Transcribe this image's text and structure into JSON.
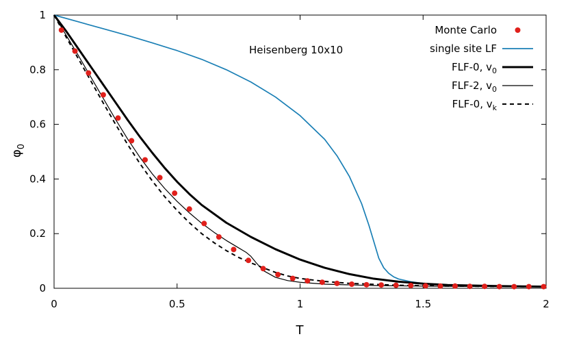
{
  "chart_data": {
    "type": "line",
    "title": "",
    "annotation": "Heisenberg 10x10",
    "xlabel": "T",
    "ylabel": "φ",
    "ylabel_sub": "0",
    "xlim": [
      0,
      2
    ],
    "ylim": [
      0,
      1
    ],
    "xticks": [
      0,
      0.5,
      1,
      1.5,
      2
    ],
    "xtick_labels": [
      "0",
      "0.5",
      "1",
      "1.5",
      "2"
    ],
    "yticks": [
      0,
      0.2,
      0.4,
      0.6,
      0.8,
      1
    ],
    "ytick_labels": [
      "0",
      "0.2",
      "0.4",
      "0.6",
      "0.8",
      "1"
    ],
    "grid": false,
    "legend_position": "top-right",
    "series": [
      {
        "name": "Monte Carlo",
        "legend_main": "Monte Carlo",
        "legend_sub": "",
        "style": "points",
        "color": "#e0201b",
        "x": [
          0.03,
          0.085,
          0.14,
          0.2,
          0.26,
          0.315,
          0.37,
          0.43,
          0.49,
          0.55,
          0.61,
          0.67,
          0.73,
          0.79,
          0.85,
          0.91,
          0.97,
          1.03,
          1.09,
          1.15,
          1.21,
          1.27,
          1.33,
          1.39,
          1.45,
          1.51,
          1.57,
          1.63,
          1.69,
          1.75,
          1.81,
          1.87,
          1.93,
          1.99
        ],
        "y": [
          0.945,
          0.868,
          0.788,
          0.708,
          0.623,
          0.54,
          0.47,
          0.405,
          0.348,
          0.29,
          0.237,
          0.188,
          0.142,
          0.102,
          0.072,
          0.05,
          0.036,
          0.027,
          0.022,
          0.018,
          0.015,
          0.013,
          0.012,
          0.011,
          0.01,
          0.009,
          0.008,
          0.008,
          0.007,
          0.007,
          0.006,
          0.006,
          0.006,
          0.006
        ]
      },
      {
        "name": "single site LF",
        "legend_main": "single site LF",
        "legend_sub": "",
        "style": "line",
        "color": "#1a7fb5",
        "width": 1.7,
        "dash": "",
        "x": [
          0,
          0.1,
          0.2,
          0.3,
          0.4,
          0.5,
          0.6,
          0.7,
          0.8,
          0.9,
          1.0,
          1.1,
          1.15,
          1.2,
          1.25,
          1.28,
          1.3,
          1.32,
          1.34,
          1.36,
          1.38,
          1.4,
          1.45,
          1.5,
          1.6,
          1.8,
          2.0
        ],
        "y": [
          1.0,
          0.975,
          0.95,
          0.925,
          0.898,
          0.87,
          0.838,
          0.8,
          0.755,
          0.7,
          0.632,
          0.545,
          0.485,
          0.41,
          0.31,
          0.23,
          0.17,
          0.11,
          0.075,
          0.055,
          0.042,
          0.034,
          0.024,
          0.018,
          0.012,
          0.008,
          0.006
        ]
      },
      {
        "name": "FLF-0, v0",
        "legend_main": "FLF-0, v",
        "legend_sub": "0",
        "style": "line",
        "color": "#000000",
        "width": 3,
        "dash": "",
        "x": [
          0,
          0.05,
          0.1,
          0.15,
          0.2,
          0.25,
          0.3,
          0.35,
          0.4,
          0.45,
          0.5,
          0.55,
          0.6,
          0.7,
          0.8,
          0.9,
          1.0,
          1.1,
          1.2,
          1.3,
          1.4,
          1.5,
          1.6,
          1.8,
          2.0
        ],
        "y": [
          1.0,
          0.94,
          0.875,
          0.81,
          0.745,
          0.68,
          0.615,
          0.553,
          0.495,
          0.44,
          0.39,
          0.345,
          0.305,
          0.24,
          0.188,
          0.143,
          0.105,
          0.075,
          0.052,
          0.035,
          0.024,
          0.017,
          0.012,
          0.008,
          0.006
        ]
      },
      {
        "name": "FLF-2, v0",
        "legend_main": "FLF-2, v",
        "legend_sub": "0",
        "style": "line",
        "color": "#000000",
        "width": 1.2,
        "dash": "",
        "x": [
          0,
          0.05,
          0.1,
          0.15,
          0.2,
          0.25,
          0.3,
          0.35,
          0.4,
          0.45,
          0.5,
          0.55,
          0.6,
          0.65,
          0.7,
          0.75,
          0.78,
          0.8,
          0.82,
          0.85,
          0.9,
          0.95,
          1.0,
          1.1,
          1.3,
          1.6,
          2.0
        ],
        "y": [
          1.0,
          0.925,
          0.85,
          0.772,
          0.695,
          0.618,
          0.545,
          0.478,
          0.418,
          0.365,
          0.318,
          0.276,
          0.238,
          0.205,
          0.175,
          0.148,
          0.132,
          0.117,
          0.095,
          0.065,
          0.04,
          0.028,
          0.022,
          0.015,
          0.01,
          0.007,
          0.005
        ]
      },
      {
        "name": "FLF-0, vk",
        "legend_main": "FLF-0, v",
        "legend_sub": "k",
        "style": "line",
        "color": "#000000",
        "width": 2,
        "dash": "6,5",
        "x": [
          0,
          0.05,
          0.1,
          0.15,
          0.2,
          0.25,
          0.3,
          0.35,
          0.4,
          0.45,
          0.5,
          0.55,
          0.6,
          0.65,
          0.7,
          0.75,
          0.8,
          0.85,
          0.9,
          0.95,
          1.0,
          1.1,
          1.2,
          1.4,
          1.6,
          2.0
        ],
        "y": [
          1.0,
          0.918,
          0.838,
          0.758,
          0.678,
          0.6,
          0.525,
          0.455,
          0.392,
          0.335,
          0.285,
          0.24,
          0.2,
          0.167,
          0.138,
          0.113,
          0.093,
          0.075,
          0.058,
          0.045,
          0.036,
          0.025,
          0.018,
          0.011,
          0.008,
          0.005
        ]
      }
    ]
  }
}
